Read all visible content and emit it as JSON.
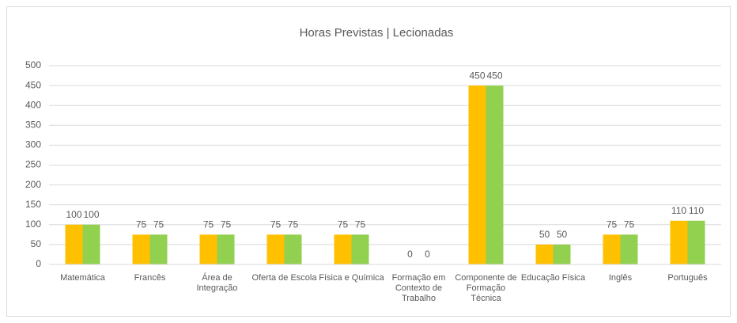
{
  "chart_data": {
    "type": "bar",
    "title": "Horas Previstas | Lecionadas",
    "categories": [
      "Matemática",
      "Francês",
      "Área de Integração",
      "Oferta de Escola",
      "Física e Química",
      "Formação em Contexto de Trabalho",
      "Componente de Formação Técnica",
      "Educação Física",
      "Inglês",
      "Português"
    ],
    "series": [
      {
        "color": "#ffc000",
        "values": [
          100,
          75,
          75,
          75,
          75,
          0,
          450,
          50,
          75,
          110
        ]
      },
      {
        "color": "#92d050",
        "values": [
          100,
          75,
          75,
          75,
          75,
          0,
          450,
          50,
          75,
          110
        ]
      }
    ],
    "ylim": [
      0,
      500
    ],
    "yticks": [
      0,
      50,
      100,
      150,
      200,
      250,
      300,
      350,
      400,
      450,
      500
    ],
    "grid": true
  }
}
